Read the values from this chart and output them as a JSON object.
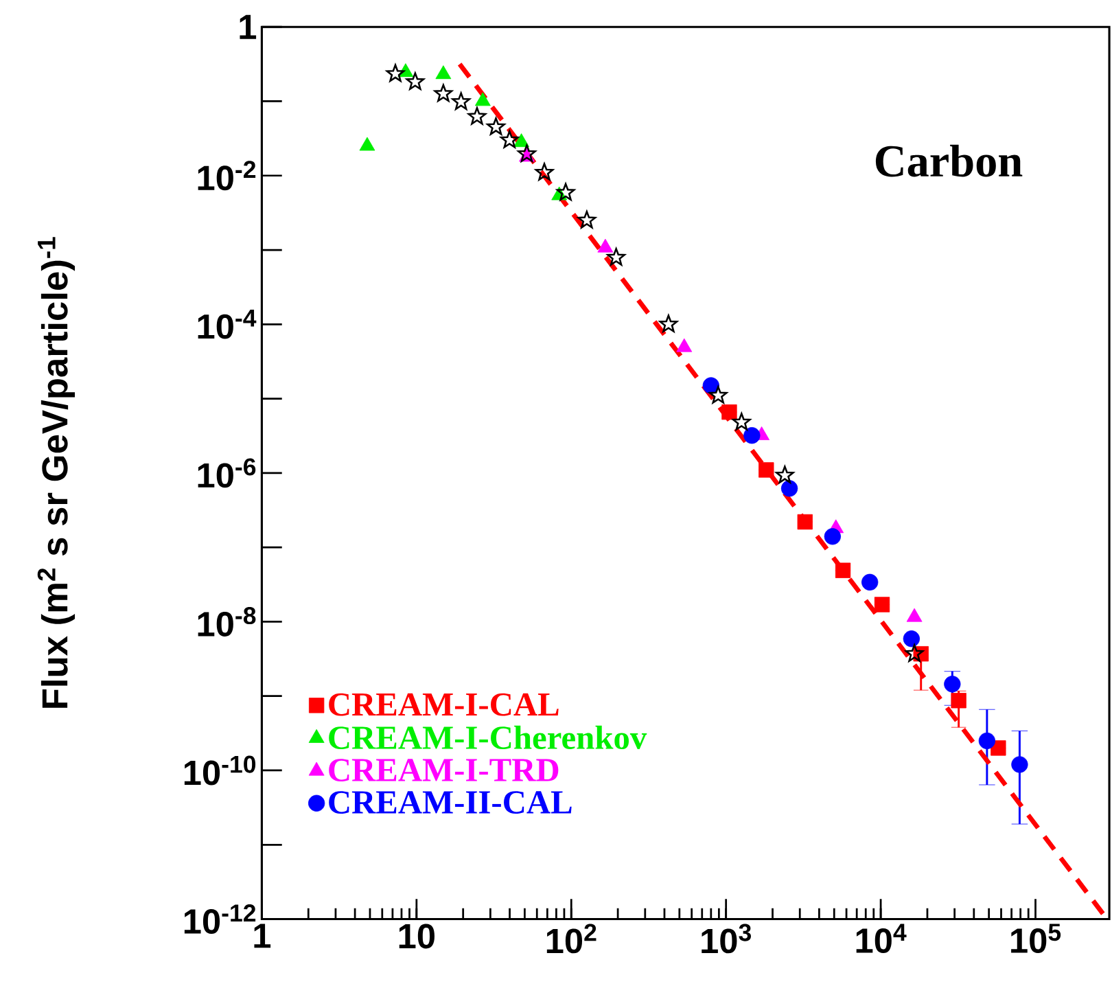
{
  "chart_data": {
    "type": "scatter",
    "log": "xy",
    "ylabel": "Flux (m$^{2}$ s sr GeV/particle)$^{-1}$",
    "annotations": [
      "Carbon"
    ],
    "xlim": [
      1,
      300000
    ],
    "ylim": [
      1e-12,
      1
    ],
    "xticks": [
      1,
      10,
      {
        "value": 100,
        "label": "10$^{2}$"
      },
      {
        "value": 1000,
        "label": "10$^{3}$"
      },
      {
        "value": 10000,
        "label": "10$^{4}$"
      },
      {
        "value": 100000,
        "label": "10$^{5}$"
      }
    ],
    "yticks": [
      1,
      {
        "value": 0.1,
        "label": null
      },
      {
        "value": 0.01,
        "label": "10$^{-2}$"
      },
      {
        "value": 0.001,
        "label": null
      },
      {
        "value": 0.0001,
        "label": "10$^{-4}$"
      },
      {
        "value": 1e-05,
        "label": null
      },
      {
        "value": 1e-06,
        "label": "10$^{-6}$"
      },
      {
        "value": 1e-07,
        "label": null
      },
      {
        "value": 1e-08,
        "label": "10$^{-8}$"
      },
      {
        "value": 1e-09,
        "label": null
      },
      {
        "value": 1e-10,
        "label": "10$^{-10}$"
      },
      {
        "value": 1e-11,
        "label": null
      },
      {
        "value": 1e-12,
        "label": "10$^{-12}$"
      }
    ],
    "legend": "bottom left",
    "series": [
      {
        "name": "CREAM-I-CAL",
        "color": "#ff0000",
        "marker": "square",
        "x": [
          1050,
          1820,
          3240,
          5700,
          10200,
          18200,
          31900,
          57500
        ],
        "values": [
          6.6e-06,
          1.1e-06,
          2.2e-07,
          4.9e-08,
          1.7e-08,
          3.7e-09,
          8.7e-10,
          2e-10
        ],
        "errors": [
          null,
          null,
          null,
          null,
          null,
          [
            1.2e-09,
            4.2e-09
          ],
          [
            3.8e-10,
            1.17e-09
          ],
          null
        ]
      },
      {
        "name": "CREAM-I-Cherenkov",
        "color": "#00ee00",
        "marker": "triangle",
        "x": [
          4.8,
          8.5,
          14.9,
          26.8,
          47.6,
          83.6
        ],
        "values": [
          0.025,
          0.245,
          0.23,
          0.1,
          0.028,
          0.0054
        ]
      },
      {
        "name": "CREAM-I-TRD",
        "color": "#ff00ff",
        "marker": "triangle",
        "x": [
          51.6,
          166,
          537,
          1700,
          5130,
          16500
        ],
        "values": [
          0.0178,
          0.00107,
          4.9e-05,
          3.2e-06,
          1.8e-07,
          1.15e-08
        ]
      },
      {
        "name": "CREAM-II-CAL",
        "color": "#0000ff",
        "marker": "circle",
        "x": [
          800,
          1470,
          2570,
          4880,
          8500,
          15800,
          29000,
          48600,
          79000
        ],
        "values": [
          1.5e-05,
          3.2e-06,
          6.2e-07,
          1.4e-07,
          3.4e-08,
          5.9e-09,
          1.45e-09,
          2.5e-10,
          1.2e-10
        ],
        "errors": [
          null,
          null,
          null,
          null,
          null,
          null,
          7e-10,
          [
            6.4e-11,
            6.6e-10
          ],
          [
            1.9e-11,
            3.4e-10
          ]
        ]
      },
      {
        "color": "#000000",
        "marker": "star",
        "x": [
          7.3,
          9.8,
          14.9,
          19.4,
          24.6,
          32.6,
          39.9,
          51.6,
          67,
          92,
          126,
          195,
          425,
          890,
          1260,
          2400,
          16500
        ],
        "values": [
          0.234,
          0.182,
          0.126,
          0.098,
          0.062,
          0.045,
          0.03,
          0.0195,
          0.011,
          0.0059,
          0.0025,
          0.00079,
          0.0001,
          1.1e-05,
          4.8e-06,
          9.3e-07,
          3.7e-09
        ]
      },
      {
        "type": "line",
        "color": "#ff0000",
        "line_style": "dashed",
        "marker": "none",
        "x": [
          19,
          290000
        ],
        "values": [
          0.316,
          1e-12
        ]
      }
    ]
  }
}
